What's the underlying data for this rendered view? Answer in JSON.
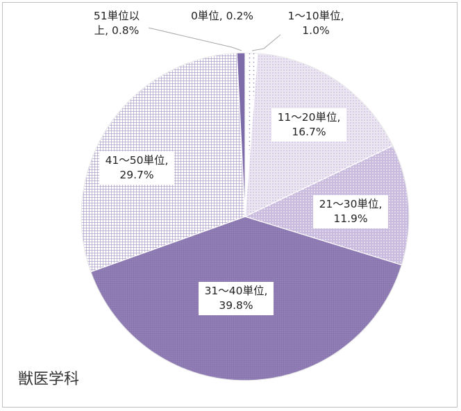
{
  "chart_data": {
    "type": "pie",
    "title": "獣医学科",
    "start_angle_deg": 0,
    "direction": "clockwise",
    "slices": [
      {
        "label": "0単位",
        "value": 0.2,
        "display": [
          "0単位, 0.2%"
        ],
        "color": "#ffffff",
        "pattern": "none"
      },
      {
        "label": "1～10単位",
        "value": 1.0,
        "display": [
          "1～10単位,",
          "1.0%"
        ],
        "color": "#f2eff7",
        "pattern": "dots-sparse"
      },
      {
        "label": "11～20単位",
        "value": 16.7,
        "display": [
          "11～20単位,",
          "16.7%"
        ],
        "color": "#e4dcee",
        "pattern": "dots-light"
      },
      {
        "label": "21～30単位",
        "value": 11.9,
        "display": [
          "21～30単位,",
          "11.9%"
        ],
        "color": "#c3b3da",
        "pattern": "dots-medium"
      },
      {
        "label": "31～40単位",
        "value": 39.8,
        "display": [
          "31～40単位,",
          "39.8%"
        ],
        "color": "#8e7bb3",
        "pattern": "dots-dense"
      },
      {
        "label": "41～50単位",
        "value": 29.7,
        "display": [
          "41～50単位,",
          "29.7%"
        ],
        "color": "#c8bcdf",
        "pattern": "grid"
      },
      {
        "label": "51単位以上",
        "value": 0.8,
        "display": [
          "51単位以",
          "上, 0.8%"
        ],
        "color": "#7d6aa8",
        "pattern": "solid"
      }
    ]
  }
}
